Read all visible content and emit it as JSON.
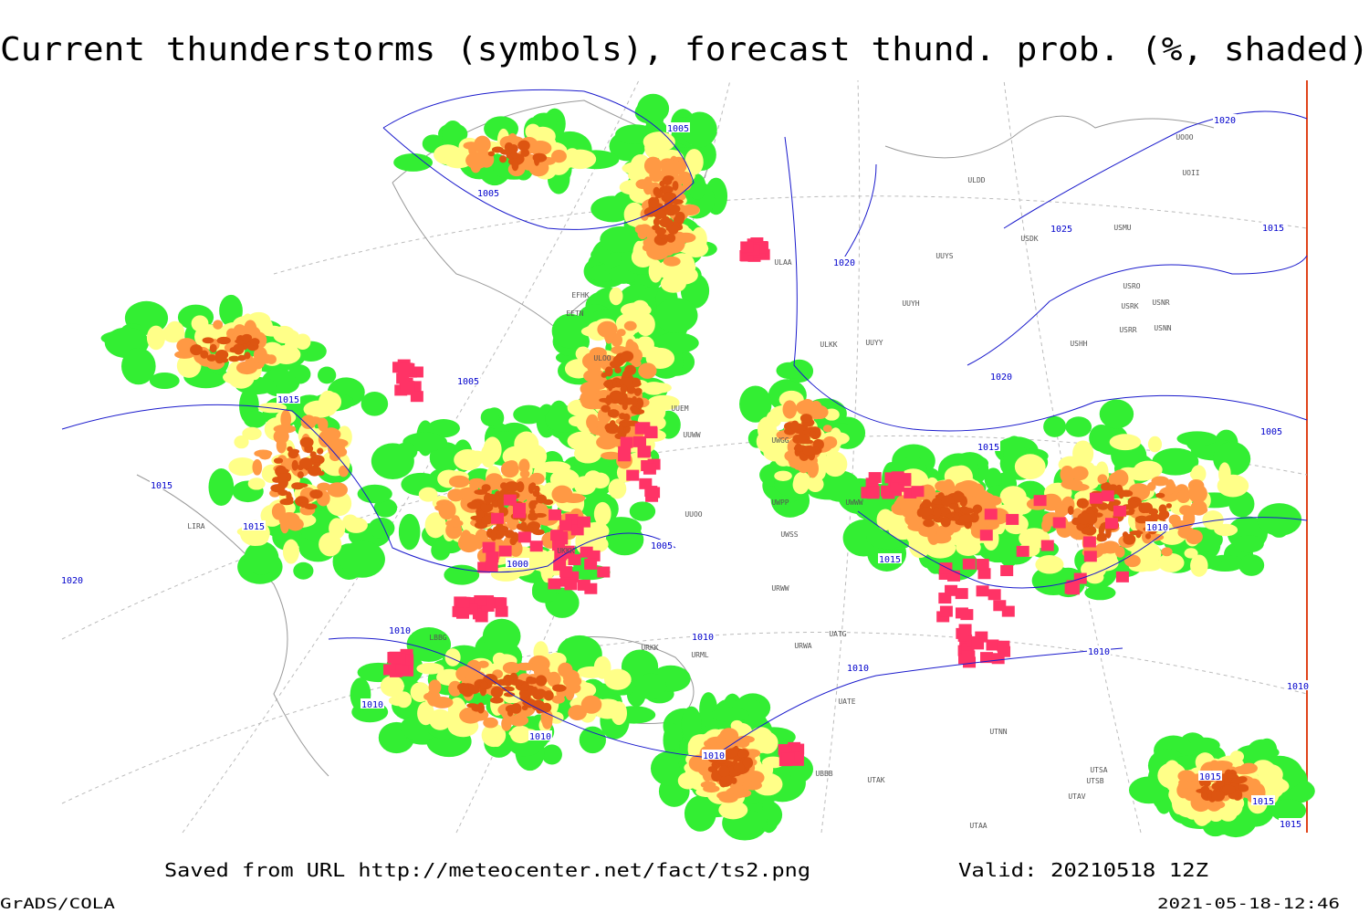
{
  "title": "Current thunderstorms (symbols), forecast thund. prob. (%, shaded)",
  "footer": {
    "saved": "Saved from URL http://meteocenter.net/fact/ts2.png",
    "valid": "Valid: 20210518 12Z",
    "software": "GrADS/COLA",
    "timestamp": "2021-05-18-12:46"
  },
  "isobar_labels": [
    "1005",
    "1005",
    "1020",
    "1025",
    "1015",
    "1020",
    "1020",
    "1005",
    "1015",
    "1015",
    "1015",
    "1020",
    "1000",
    "1005",
    "1015",
    "1010",
    "1005",
    "1015",
    "1010",
    "1010",
    "1010",
    "1010",
    "1010",
    "1010",
    "1010",
    "1015",
    "1015",
    "1015",
    "1010"
  ],
  "station_labels": [
    "ULDD",
    "USDK",
    "USMU",
    "UUYS",
    "ULAA",
    "USRO",
    "USRK",
    "USNR",
    "UUYH",
    "USRR",
    "USNN",
    "ULKK",
    "UUYY",
    "USHH",
    "UOOO",
    "UOII",
    "EFHK",
    "EETN",
    "ULOO",
    "UUEM",
    "UUWW",
    "UUOO",
    "UWGG",
    "UWPP",
    "UWWW",
    "UWSS",
    "URWW",
    "URWA",
    "UATG",
    "UATE",
    "UTNN",
    "UTSA",
    "UTSB",
    "UTAV",
    "UTAA",
    "UBBB",
    "UTAK",
    "LIRA",
    "LBBG",
    "URKK",
    "URML",
    "UKKK"
  ]
}
